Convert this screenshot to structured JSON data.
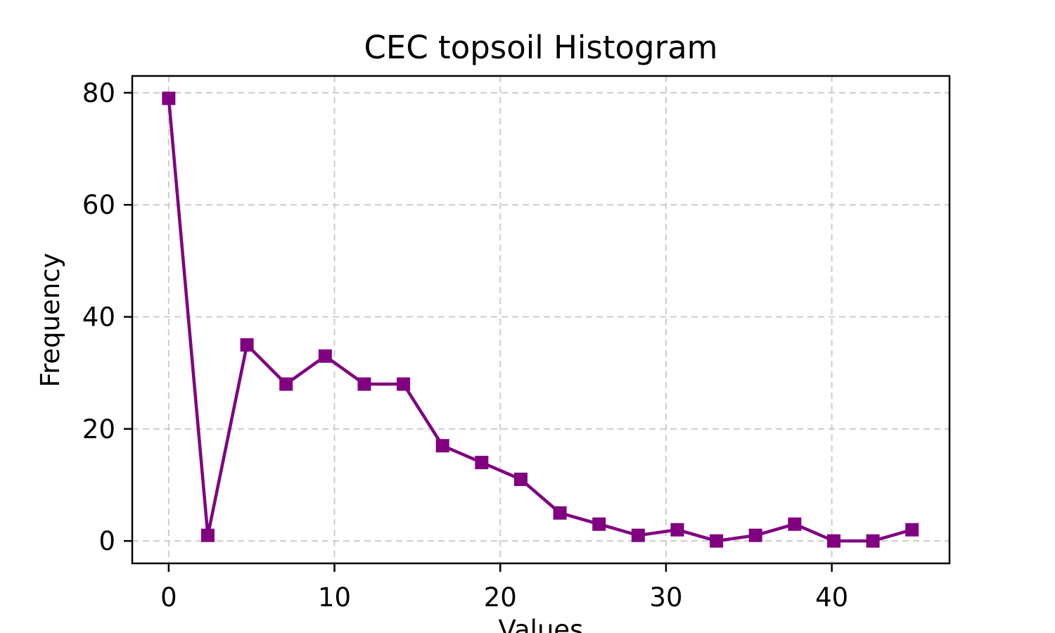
{
  "chart_data": {
    "type": "line",
    "title": "CEC topsoil Histogram",
    "xlabel": "Values",
    "ylabel": "Frequency",
    "xlim": [
      -2.2,
      47.1
    ],
    "ylim": [
      -4,
      83
    ],
    "xticks": [
      0,
      10,
      20,
      30,
      40
    ],
    "yticks": [
      0,
      20,
      40,
      60,
      80
    ],
    "grid": true,
    "color": "#800080",
    "marker": "square",
    "series": [
      {
        "x": [
          0,
          2.36,
          4.72,
          7.08,
          9.44,
          11.8,
          14.16,
          16.52,
          18.88,
          21.24,
          23.6,
          25.96,
          28.32,
          30.68,
          33.04,
          35.4,
          37.76,
          40.12,
          42.48,
          44.84
        ],
        "y": [
          79,
          1,
          35,
          28,
          33,
          28,
          28,
          17,
          14,
          11,
          5,
          3,
          1,
          2,
          0,
          1,
          3,
          0,
          0,
          2
        ]
      }
    ]
  }
}
